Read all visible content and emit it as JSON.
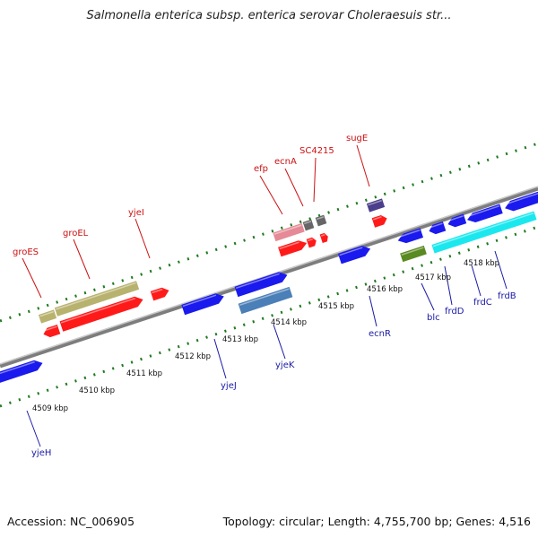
{
  "title": "Salmonella enterica subsp. enterica serovar Choleraesuis str...",
  "footer": {
    "accession": "Accession: NC_006905",
    "summary": "Topology: circular; Length: 4,755,700 bp; Genes: 4,516"
  },
  "colors": {
    "backbone": "#808080",
    "forward_track_ticks": "#1f7a1f",
    "forward_gene": "#ff1a1a",
    "reverse_gene": "#1a1aee",
    "forward_label": "#cc1111",
    "reverse_label": "#1a1aa6"
  },
  "kbp_ticks": [
    "4509 kbp",
    "4510 kbp",
    "4511 kbp",
    "4512 kbp",
    "4513 kbp",
    "4514 kbp",
    "4515 kbp",
    "4516 kbp",
    "4517 kbp",
    "4518 kbp"
  ],
  "forward_genes": [
    "groES",
    "groEL",
    "yjeI",
    "efp",
    "ecnA",
    "SC4215",
    "sugE"
  ],
  "reverse_genes": [
    "yjeH",
    "yjeJ",
    "yjeK",
    "ecnR",
    "blc",
    "frdD",
    "frdC",
    "frdB"
  ]
}
